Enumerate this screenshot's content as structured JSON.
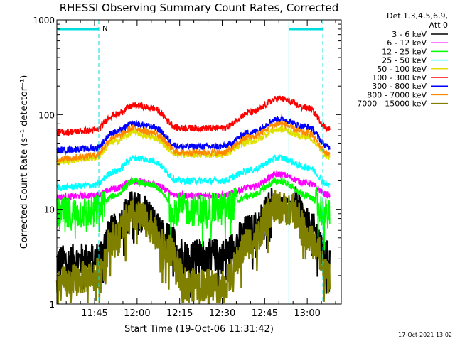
{
  "chart_data": {
    "type": "line",
    "title": "RHESSI Observing Summary Count Rates, Corrected",
    "xlabel": "Start Time (19-Oct-06 11:31:42)",
    "ylabel": "Corrected Count Rate (s⁻¹ detector⁻¹)",
    "yscale": "log",
    "ylim": [
      1,
      1000
    ],
    "xlim": [
      "11:31:42",
      "13:12:00"
    ],
    "xticks": [
      "11:45",
      "12:00",
      "12:15",
      "12:30",
      "12:45",
      "13:00"
    ],
    "yticks": [
      "1",
      "10",
      "100",
      "1000"
    ],
    "legend_header": [
      "Det 1,3,4,5,6,9,",
      "Att 0"
    ],
    "legend_position": "top-right outside",
    "night_marker_label": "N",
    "night_intervals": [
      [
        "11:31:42",
        "11:46:30"
      ],
      [
        "12:53:10",
        "13:05:30"
      ]
    ],
    "marker_color": "#00dddd",
    "timestamp": "17-Oct-2021 13:02",
    "series": [
      {
        "name": "3 - 6 keV",
        "color": "#000000",
        "points": [
          [
            "11:32",
            2.8
          ],
          [
            "11:45",
            3.0
          ],
          [
            "11:52",
            6
          ],
          [
            "11:58",
            10.5
          ],
          [
            "12:02",
            10
          ],
          [
            "12:10",
            5
          ],
          [
            "12:18",
            3.2
          ],
          [
            "12:30",
            3.3
          ],
          [
            "12:40",
            6
          ],
          [
            "12:49",
            12.5
          ],
          [
            "12:55",
            12
          ],
          [
            "13:02",
            6
          ],
          [
            "13:08",
            3.0
          ]
        ]
      },
      {
        "name": "6 - 12 keV",
        "color": "#ff00ff",
        "points": [
          [
            "11:32",
            13.5
          ],
          [
            "11:45",
            14
          ],
          [
            "11:52",
            16.5
          ],
          [
            "11:59",
            20
          ],
          [
            "12:05",
            18.5
          ],
          [
            "12:15",
            14
          ],
          [
            "12:30",
            14
          ],
          [
            "12:40",
            17
          ],
          [
            "12:50",
            23.5
          ],
          [
            "13:00",
            19
          ],
          [
            "13:08",
            14
          ]
        ]
      },
      {
        "name": "12 - 25 keV",
        "color": "#00ff00",
        "points": [
          [
            "11:32",
            8.8
          ],
          [
            "11:45",
            9.5
          ],
          [
            "11:52",
            14
          ],
          [
            "11:59",
            20
          ],
          [
            "12:05",
            18
          ],
          [
            "12:15",
            10
          ],
          [
            "12:30",
            10
          ],
          [
            "12:40",
            14
          ],
          [
            "12:50",
            20
          ],
          [
            "13:00",
            14
          ],
          [
            "13:08",
            8.5
          ]
        ]
      },
      {
        "name": "25 - 50 keV",
        "color": "#00ffff",
        "points": [
          [
            "11:32",
            17
          ],
          [
            "11:45",
            18
          ],
          [
            "11:52",
            25
          ],
          [
            "11:59",
            35
          ],
          [
            "12:05",
            33
          ],
          [
            "12:15",
            20
          ],
          [
            "12:30",
            20
          ],
          [
            "12:40",
            26
          ],
          [
            "12:50",
            35
          ],
          [
            "13:00",
            28
          ],
          [
            "13:08",
            18
          ]
        ]
      },
      {
        "name": "50 - 100 keV",
        "color": "#e0e000",
        "points": [
          [
            "11:32",
            32
          ],
          [
            "11:45",
            35
          ],
          [
            "11:52",
            52
          ],
          [
            "11:59",
            65
          ],
          [
            "12:05",
            58
          ],
          [
            "12:15",
            38
          ],
          [
            "12:30",
            38
          ],
          [
            "12:40",
            52
          ],
          [
            "12:50",
            70
          ],
          [
            "13:00",
            58
          ],
          [
            "13:08",
            36
          ]
        ]
      },
      {
        "name": "100 - 300 keV",
        "color": "#ff0000",
        "points": [
          [
            "11:32",
            65
          ],
          [
            "11:45",
            68
          ],
          [
            "11:52",
            100
          ],
          [
            "11:59",
            125
          ],
          [
            "12:05",
            118
          ],
          [
            "12:15",
            72
          ],
          [
            "12:30",
            72
          ],
          [
            "12:40",
            105
          ],
          [
            "12:50",
            148
          ],
          [
            "13:00",
            118
          ],
          [
            "13:08",
            70
          ]
        ]
      },
      {
        "name": "300 - 800 keV",
        "color": "#0000ff",
        "points": [
          [
            "11:32",
            42
          ],
          [
            "11:45",
            44
          ],
          [
            "11:52",
            65
          ],
          [
            "11:59",
            80
          ],
          [
            "12:05",
            75
          ],
          [
            "12:15",
            46
          ],
          [
            "12:30",
            46
          ],
          [
            "12:40",
            65
          ],
          [
            "12:50",
            90
          ],
          [
            "13:00",
            74
          ],
          [
            "13:08",
            45
          ]
        ]
      },
      {
        "name": "800 - 7000 keV",
        "color": "#ff8800",
        "points": [
          [
            "11:32",
            34
          ],
          [
            "11:45",
            37
          ],
          [
            "11:52",
            58
          ],
          [
            "11:59",
            72
          ],
          [
            "12:05",
            65
          ],
          [
            "12:15",
            40
          ],
          [
            "12:30",
            40
          ],
          [
            "12:40",
            58
          ],
          [
            "12:50",
            80
          ],
          [
            "13:00",
            64
          ],
          [
            "13:08",
            38
          ]
        ]
      },
      {
        "name": "7000 - 15000 keV",
        "color": "#808000",
        "points": [
          [
            "11:32",
            1.6
          ],
          [
            "11:45",
            2.0
          ],
          [
            "11:52",
            5
          ],
          [
            "11:58",
            8.5
          ],
          [
            "12:02",
            8
          ],
          [
            "12:10",
            4
          ],
          [
            "12:18",
            1.6
          ],
          [
            "12:30",
            1.6
          ],
          [
            "12:40",
            4.5
          ],
          [
            "12:49",
            10.5
          ],
          [
            "12:55",
            10
          ],
          [
            "13:02",
            4.5
          ],
          [
            "13:08",
            2.0
          ]
        ]
      }
    ]
  }
}
